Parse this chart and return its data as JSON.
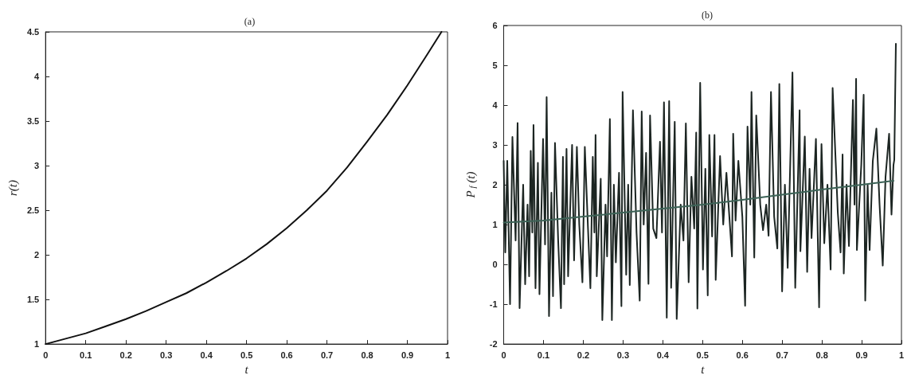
{
  "chart_data": [
    {
      "type": "line",
      "title": "(a)",
      "xlabel": "t",
      "ylabel": "r(t)",
      "xlim": [
        0,
        1
      ],
      "xticks": [
        0,
        0.1,
        0.2,
        0.3,
        0.4,
        0.5,
        0.6,
        0.7,
        0.8,
        0.9,
        1
      ],
      "ylim": [
        1,
        4.5
      ],
      "yticks": [
        1,
        1.5,
        2,
        2.5,
        3,
        3.5,
        4,
        4.5
      ],
      "grid": false,
      "marker": "none",
      "line_style": "solid",
      "series": [
        {
          "color": "#111111",
          "x": [
            0,
            0.05,
            0.1,
            0.15,
            0.2,
            0.25,
            0.3,
            0.35,
            0.4,
            0.45,
            0.5,
            0.55,
            0.6,
            0.65,
            0.7,
            0.75,
            0.8,
            0.85,
            0.9,
            0.95,
            0.985
          ],
          "values": [
            1,
            1.06,
            1.12,
            1.2,
            1.28,
            1.37,
            1.47,
            1.57,
            1.69,
            1.82,
            1.96,
            2.12,
            2.3,
            2.5,
            2.72,
            2.98,
            3.27,
            3.57,
            3.9,
            4.25,
            4.5
          ]
        }
      ]
    },
    {
      "type": "line",
      "title": "(b)",
      "xlabel": "t",
      "ylabel": "P$_{f}$(t)",
      "xlim": [
        0,
        1
      ],
      "xticks": [
        0,
        0.1,
        0.2,
        0.3,
        0.4,
        0.5,
        0.6,
        0.7,
        0.8,
        0.9,
        1
      ],
      "ylim": [
        -2,
        6
      ],
      "yticks": [
        -2,
        -1,
        0,
        1,
        2,
        3,
        4,
        5,
        6
      ],
      "grid": false,
      "marker": "none",
      "line_style": "solid",
      "series": [
        {
          "color": "#1c2522",
          "x": [
            0,
            0.004,
            0.009,
            0.016,
            0.022,
            0.03,
            0.035,
            0.04,
            0.049,
            0.054,
            0.06,
            0.064,
            0.068,
            0.072,
            0.075,
            0.08,
            0.086,
            0.09,
            0.099,
            0.104,
            0.108,
            0.114,
            0.12,
            0.124,
            0.129,
            0.137,
            0.144,
            0.149,
            0.152,
            0.158,
            0.162,
            0.172,
            0.177,
            0.184,
            0.19,
            0.198,
            0.204,
            0.212,
            0.218,
            0.224,
            0.228,
            0.231,
            0.234,
            0.244,
            0.248,
            0.256,
            0.26,
            0.267,
            0.272,
            0.277,
            0.282,
            0.29,
            0.296,
            0.299,
            0.308,
            0.313,
            0.317,
            0.325,
            0.334,
            0.342,
            0.347,
            0.352,
            0.358,
            0.364,
            0.368,
            0.376,
            0.384,
            0.393,
            0.398,
            0.403,
            0.41,
            0.416,
            0.421,
            0.43,
            0.435,
            0.445,
            0.452,
            0.458,
            0.465,
            0.472,
            0.479,
            0.484,
            0.487,
            0.494,
            0.501,
            0.507,
            0.513,
            0.517,
            0.524,
            0.53,
            0.533,
            0.544,
            0.552,
            0.56,
            0.574,
            0.577,
            0.583,
            0.59,
            0.6,
            0.607,
            0.613,
            0.62,
            0.623,
            0.63,
            0.635,
            0.645,
            0.652,
            0.66,
            0.666,
            0.672,
            0.68,
            0.688,
            0.693,
            0.7,
            0.707,
            0.714,
            0.726,
            0.733,
            0.744,
            0.746,
            0.757,
            0.763,
            0.769,
            0.774,
            0.785,
            0.793,
            0.799,
            0.806,
            0.814,
            0.822,
            0.827,
            0.84,
            0.847,
            0.852,
            0.855,
            0.862,
            0.868,
            0.878,
            0.882,
            0.886,
            0.888,
            0.899,
            0.905,
            0.909,
            0.915,
            0.92,
            0.928,
            0.937,
            0.945,
            0.953,
            0.96,
            0.969,
            0.975,
            0.98,
            0.982,
            0.986
          ],
          "values": [
            2.6,
            0.3,
            2.6,
            -1.0,
            3.2,
            0.6,
            3.55,
            -1.1,
            2.0,
            -0.5,
            1.5,
            -0.3,
            2.85,
            0.8,
            3.5,
            -0.6,
            2.55,
            -0.75,
            3.15,
            0.5,
            4.2,
            -1.3,
            1.8,
            -0.8,
            3.05,
            0.6,
            -1.1,
            2.7,
            -0.5,
            2.9,
            -0.3,
            3.0,
            0.1,
            2.95,
            1.0,
            -0.45,
            2.95,
            0.9,
            -0.6,
            2.7,
            0.8,
            3.25,
            -0.3,
            2.15,
            -1.4,
            1.5,
            0.2,
            3.65,
            -1.4,
            2.0,
            0.05,
            2.3,
            -1.05,
            4.33,
            -0.26,
            2.0,
            -0.52,
            3.87,
            0.8,
            -0.91,
            3.84,
            1.0,
            2.8,
            -0.49,
            3.74,
            0.9,
            0.66,
            3.08,
            0.8,
            4.07,
            -1.34,
            4.1,
            -0.59,
            3.58,
            -1.37,
            1.5,
            0.6,
            3.54,
            -0.45,
            2.2,
            0.9,
            3.31,
            -1.11,
            4.56,
            -0.13,
            2.4,
            -0.78,
            3.25,
            0.7,
            3.25,
            -0.39,
            2.72,
            1.0,
            2.3,
            0.2,
            3.28,
            1.1,
            2.6,
            1.2,
            -1.04,
            3.46,
            1.5,
            4.33,
            0.17,
            3.74,
            1.5,
            0.86,
            1.5,
            0.72,
            4.33,
            1.2,
            0.4,
            4.53,
            -0.68,
            2.0,
            -0.09,
            4.82,
            -0.59,
            3.87,
            0.33,
            3.21,
            -0.19,
            2.4,
            0.66,
            3.15,
            -1.08,
            3.02,
            0.53,
            2.0,
            -0.13,
            4.43,
            1.3,
            0.3,
            2.76,
            -0.23,
            2.0,
            0.46,
            4.13,
            1.5,
            4.66,
            0.36,
            2.5,
            4.26,
            -0.91,
            2.0,
            0.36,
            2.6,
            3.41,
            1.5,
            -0.03,
            2.2,
            3.28,
            1.25,
            2.5,
            2.63,
            5.54
          ]
        },
        {
          "color": "#3d6357",
          "x": [
            0,
            0.1,
            0.2,
            0.3,
            0.4,
            0.5,
            0.6,
            0.7,
            0.8,
            0.9,
            0.98
          ],
          "values": [
            1.05,
            1.1,
            1.2,
            1.3,
            1.4,
            1.5,
            1.62,
            1.75,
            1.88,
            2.0,
            2.1
          ]
        }
      ]
    }
  ]
}
